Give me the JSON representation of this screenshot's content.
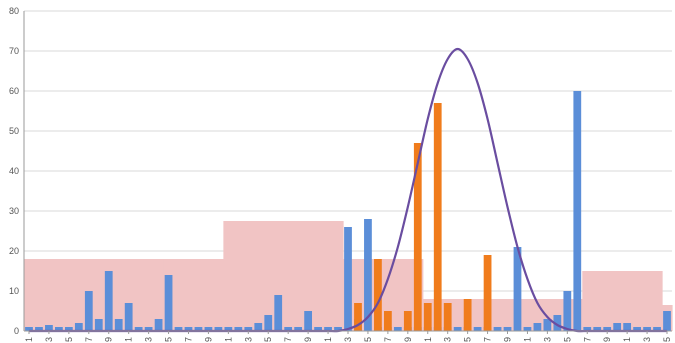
{
  "chart_data": {
    "type": "bar",
    "title": "",
    "xlabel": "",
    "ylabel": "",
    "ylim": [
      0,
      80
    ],
    "y_ticks": [
      0,
      10,
      20,
      30,
      40,
      50,
      60,
      70,
      80
    ],
    "x_tick_labels": [
      "1",
      "3",
      "5",
      "7",
      "9",
      "1",
      "3",
      "5",
      "7",
      "9",
      "1",
      "3",
      "5",
      "7",
      "9",
      "1",
      "3",
      "5",
      "7",
      "9",
      "1",
      "3",
      "5",
      "7",
      "9",
      "1",
      "3",
      "5",
      "7",
      "9",
      "1",
      "3",
      "5"
    ],
    "grid": true,
    "legend": "none",
    "x_count": 65,
    "colors": {
      "envelope": "#f1c4c4",
      "blue": "#5b8ed8",
      "orange": "#f07c1c",
      "curve": "#6a4da0"
    },
    "series": [
      {
        "type": "area-step",
        "values": [
          18,
          18,
          18,
          18,
          18,
          18,
          18,
          18,
          18,
          18,
          18,
          18,
          18,
          18,
          18,
          18,
          18,
          18,
          18,
          18,
          27.5,
          27.5,
          27.5,
          27.5,
          27.5,
          27.5,
          27.5,
          27.5,
          27.5,
          27.5,
          27.5,
          27.5,
          18,
          18,
          18,
          18,
          18,
          18,
          18,
          18,
          8,
          8,
          8,
          8,
          8,
          8,
          8,
          8,
          8,
          8,
          8,
          8,
          8,
          8,
          8,
          8,
          15,
          15,
          15,
          15,
          15,
          15,
          15,
          15,
          6.5
        ]
      },
      {
        "type": "bar",
        "values": [
          1,
          1,
          1.5,
          1,
          1,
          2,
          10,
          3,
          15,
          3,
          7,
          1,
          1,
          3,
          14,
          1,
          1,
          1,
          1,
          1,
          1,
          1,
          1,
          2,
          4,
          9,
          1,
          1,
          5,
          1,
          1,
          1,
          26,
          3,
          28,
          1,
          1,
          1,
          1,
          1,
          1,
          1,
          1,
          1,
          1,
          1,
          1,
          1,
          1,
          21,
          1,
          2,
          3,
          4,
          10,
          60,
          1,
          1,
          1,
          2,
          2,
          1,
          1,
          1,
          5
        ]
      },
      {
        "type": "bar",
        "values": [
          0,
          0,
          0,
          0,
          0,
          0,
          0,
          0,
          0,
          0,
          0,
          0,
          0,
          0,
          0,
          0,
          0,
          0,
          0,
          0,
          0,
          0,
          0,
          0,
          0,
          0,
          0,
          0,
          0,
          0,
          0,
          0,
          0,
          7,
          0,
          18,
          5,
          0,
          5,
          47,
          7,
          57,
          7,
          0,
          8,
          0,
          19,
          0,
          0,
          0,
          0,
          0,
          0,
          0,
          0,
          0,
          0,
          0,
          0,
          0,
          0,
          0,
          0,
          0,
          0
        ]
      },
      {
        "type": "line",
        "values": [
          0,
          0,
          0,
          0,
          0,
          0,
          0,
          0,
          0,
          0,
          0,
          0,
          0,
          0,
          0,
          0,
          0,
          0,
          0,
          0,
          0,
          0,
          0,
          0,
          0,
          0,
          0,
          0,
          0,
          0,
          0,
          0,
          0.5,
          1.5,
          3.5,
          7,
          13,
          21,
          31,
          42,
          53,
          62,
          68,
          70.5,
          68,
          62,
          53,
          42,
          31,
          21,
          13,
          7,
          3.5,
          1.5,
          0.5,
          0,
          0,
          0,
          0,
          0,
          0,
          0,
          0,
          0,
          0
        ]
      }
    ]
  }
}
